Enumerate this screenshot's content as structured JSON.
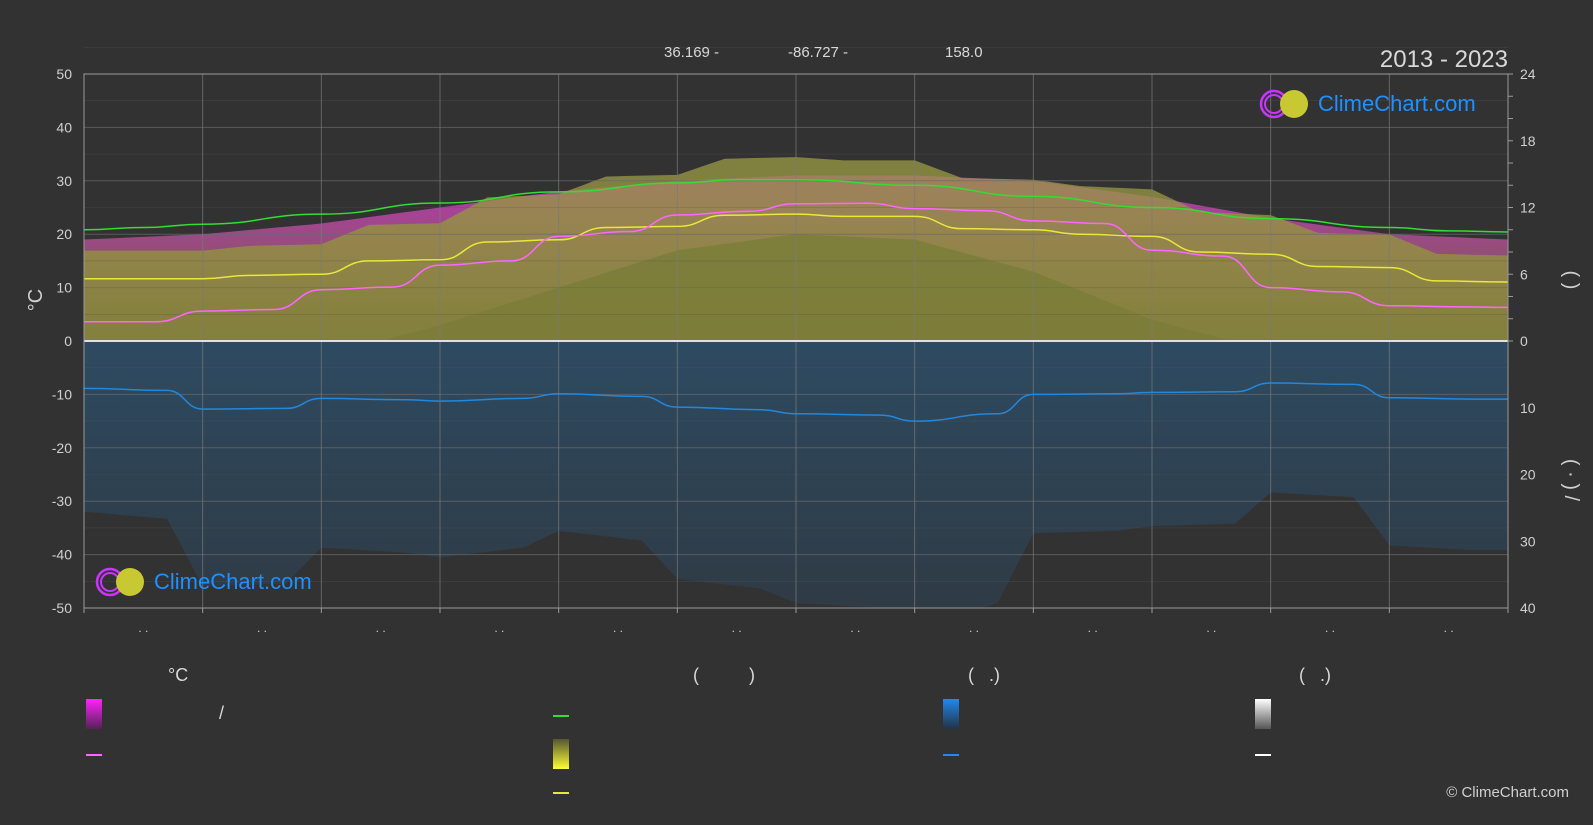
{
  "header": {
    "latitude": "36.169 -",
    "longitude": "-86.727 -",
    "elevation": "158.0",
    "years": "2013 - 2023"
  },
  "logo": {
    "text": "ClimeChart.com"
  },
  "copyright": "© ClimeChart.com",
  "legend": {
    "col1_head": "°C",
    "col2_head": "(          )",
    "col3_head": "(   .)",
    "col4_head": "(   .)",
    "slash": "/"
  },
  "colors": {
    "background": "#323232",
    "daylight": "#33dd33",
    "sunshine": "#e8e83a",
    "temperature": "#ff66ff",
    "temperature_range": "#cc33cc",
    "precipitation": "#2288dd",
    "snow": "#e0e0e0"
  },
  "chart_data": {
    "type": "area",
    "x_months": 12,
    "x_tick_labels": [
      ". .",
      ". .",
      ". .",
      ". .",
      ". .",
      ". .",
      ". .",
      ". .",
      ". .",
      ". .",
      ". .",
      ". ."
    ],
    "left_axis": {
      "label": "°C",
      "ylim": [
        -50,
        50
      ],
      "ticks": [
        50,
        40,
        30,
        20,
        10,
        0,
        -10,
        -20,
        -30,
        -40,
        -50
      ]
    },
    "right_axis_top": {
      "label": "(    )",
      "ylim": [
        0,
        24
      ],
      "ticks": [
        24,
        18,
        12,
        6,
        0
      ]
    },
    "right_axis_bottom": {
      "label": "(  ·  )  /",
      "ylim": [
        0,
        40
      ],
      "ticks": [
        0,
        10,
        20,
        30,
        40
      ]
    },
    "grid": true,
    "series": [
      {
        "id": "daylight",
        "x": [
          0,
          0.5,
          1,
          2,
          3,
          4,
          5,
          5.5,
          6,
          7,
          8,
          9,
          10,
          11,
          11.5,
          12
        ],
        "values": [
          10,
          10.2,
          10.5,
          11.4,
          12.4,
          13.4,
          14.2,
          14.5,
          14.5,
          14.0,
          13.0,
          12.0,
          11.0,
          10.2,
          9.9,
          9.8
        ]
      },
      {
        "id": "sunshine",
        "x": [
          0,
          1,
          1.4,
          2,
          2.4,
          3,
          3.4,
          4,
          4.4,
          5,
          5.4,
          6,
          6.4,
          7,
          7.4,
          8,
          8.4,
          9,
          9.4,
          10,
          10.4,
          11,
          11.4,
          12
        ],
        "values": [
          5.6,
          5.6,
          5.9,
          6.0,
          7.2,
          7.3,
          8.9,
          9.1,
          10.2,
          10.3,
          11.3,
          11.4,
          11.2,
          11.2,
          10.1,
          10.0,
          9.6,
          9.4,
          8.0,
          7.8,
          6.7,
          6.6,
          5.4,
          5.3
        ]
      },
      {
        "id": "mean_temperature",
        "x": [
          0,
          0.6,
          1,
          1.6,
          2,
          2.6,
          3,
          3.6,
          4,
          4.6,
          5,
          5.6,
          6,
          6.6,
          7,
          7.6,
          8,
          8.6,
          9,
          9.6,
          10,
          10.6,
          11,
          11.6,
          12
        ],
        "values": [
          3.6,
          3.6,
          5.6,
          5.9,
          9.6,
          10.1,
          14.2,
          15.0,
          19.6,
          20.5,
          23.6,
          24.3,
          25.7,
          25.8,
          24.8,
          24.4,
          22.5,
          22.0,
          17.0,
          15.9,
          10.0,
          9.2,
          6.6,
          6.4,
          6.3
        ]
      },
      {
        "id": "precipitation_mean",
        "x": [
          0,
          0.7,
          1,
          1.7,
          2,
          2.7,
          3,
          3.7,
          4,
          4.7,
          5,
          5.7,
          6,
          6.7,
          7,
          7.7,
          8,
          8.7,
          9,
          9.7,
          10,
          10.7,
          11,
          11.7,
          12
        ],
        "values": [
          7.1,
          7.4,
          10.2,
          10.1,
          8.6,
          8.8,
          9.0,
          8.6,
          7.9,
          8.3,
          9.9,
          10.3,
          10.9,
          11.1,
          12.0,
          10.9,
          8.0,
          7.9,
          7.7,
          7.6,
          6.3,
          6.5,
          8.5,
          8.7,
          8.7
        ]
      },
      {
        "id": "temp_band_high",
        "x": [
          0,
          1,
          2,
          3,
          4,
          5,
          6,
          7,
          8,
          9,
          10,
          11,
          12
        ],
        "values": [
          19,
          20,
          22,
          25,
          28,
          30,
          31,
          31,
          30,
          27,
          23,
          20,
          19
        ]
      },
      {
        "id": "temp_band_low",
        "x": [
          0,
          1,
          2,
          3,
          4,
          5,
          6,
          7,
          8,
          9,
          10,
          11,
          12
        ],
        "values": [
          -8,
          -7,
          -3,
          3,
          10,
          17,
          20,
          19,
          13,
          4,
          -2,
          -6,
          -8
        ]
      }
    ]
  }
}
